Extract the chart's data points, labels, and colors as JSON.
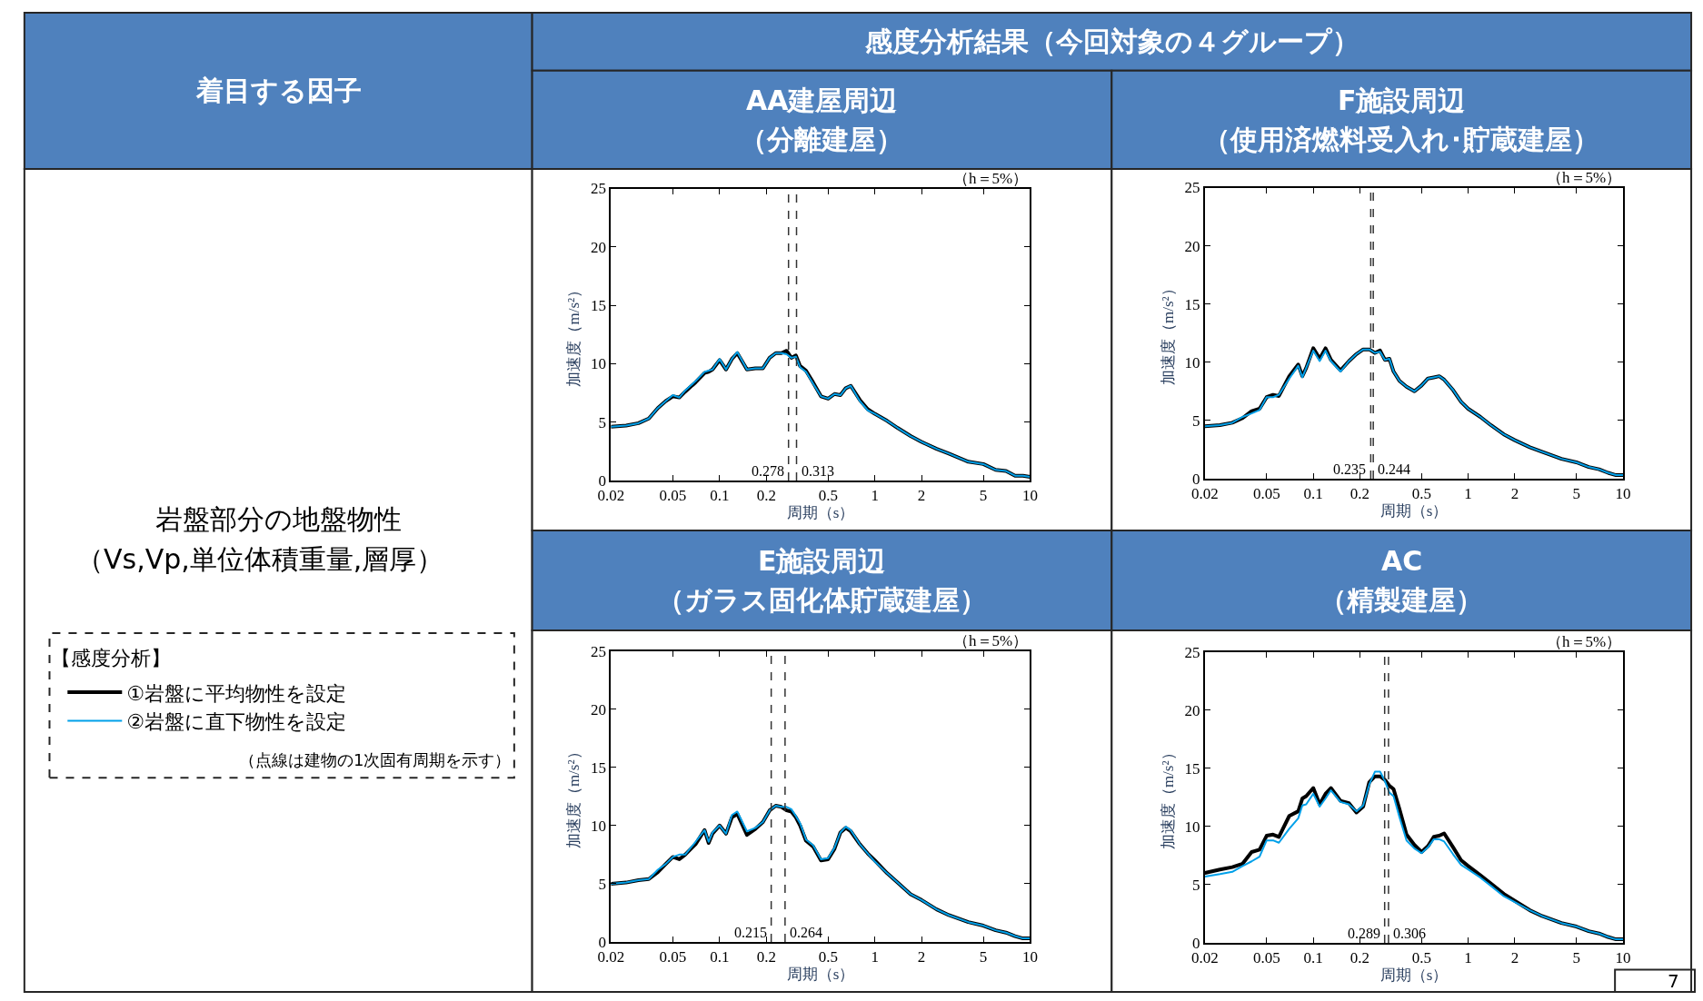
{
  "chart_data": [
    {
      "type": "other",
      "title": "着目する因子",
      "annotations": [
        "感度分析結果（今回対象の４グループ）",
        "岩盤部分の地盤物性",
        "（Vs,Vp,単位体積重量,層厚）",
        "【感度分析】",
        "（点線は建物の1次固有周期を示す）",
        "7"
      ]
    },
    {
      "type": "line",
      "title": "AA建屋周辺",
      "subtitle": "（分離建屋）",
      "xlabel": "周期（s）",
      "ylabel": "加速度（m/s²）",
      "annotations": [
        "（h＝5%）"
      ],
      "log": "x",
      "legend": "left",
      "xlim": [
        0.02,
        10
      ],
      "xticks": [
        0.02,
        0.05,
        0.1,
        0.2,
        0.5,
        1,
        2,
        5,
        10
      ],
      "ylim": [
        0,
        25
      ],
      "yticks": [
        0,
        5,
        10,
        15,
        20,
        25
      ],
      "ref_lines": [
        {
          "axis": "x",
          "value": 0.278,
          "label": "0.278",
          "line_style": "dashed"
        },
        {
          "axis": "x",
          "value": 0.313,
          "label": "0.313",
          "line_style": "dashed"
        }
      ],
      "x": [
        0.02,
        0.025,
        0.03,
        0.035,
        0.04,
        0.045,
        0.05,
        0.055,
        0.06,
        0.07,
        0.08,
        0.085,
        0.09,
        0.1,
        0.11,
        0.12,
        0.13,
        0.15,
        0.17,
        0.19,
        0.21,
        0.23,
        0.25,
        0.27,
        0.29,
        0.31,
        0.33,
        0.36,
        0.4,
        0.45,
        0.5,
        0.55,
        0.6,
        0.65,
        0.7,
        0.8,
        0.9,
        1,
        1.2,
        1.4,
        1.7,
        2,
        2.5,
        3,
        4,
        5,
        6,
        7,
        8,
        9,
        10
      ],
      "series": [
        {
          "name": "①岩盤に平均物性を設定",
          "color": "#000000",
          "values": [
            4.6,
            4.7,
            4.9,
            5.3,
            6.2,
            6.8,
            7.2,
            7.1,
            7.6,
            8.4,
            9.2,
            9.3,
            9.5,
            10.3,
            9.5,
            10.4,
            10.9,
            9.5,
            9.6,
            9.6,
            10.5,
            10.9,
            10.9,
            11.1,
            10.5,
            10.7,
            9.8,
            9.4,
            8.4,
            7.2,
            7.0,
            7.4,
            7.3,
            7.9,
            8.1,
            6.9,
            6.1,
            5.7,
            5.1,
            4.5,
            3.8,
            3.3,
            2.7,
            2.3,
            1.6,
            1.4,
            0.9,
            0.8,
            0.4,
            0.4,
            0.3
          ]
        },
        {
          "name": "②岩盤に直下物性を設定",
          "color": "#00a0e9",
          "values": [
            4.6,
            4.7,
            4.9,
            5.3,
            6.2,
            6.8,
            7.3,
            7.1,
            7.7,
            8.5,
            9.3,
            9.4,
            9.5,
            10.4,
            9.5,
            10.4,
            11.0,
            9.5,
            9.6,
            9.6,
            10.5,
            10.9,
            10.9,
            10.8,
            10.5,
            10.6,
            9.7,
            9.3,
            8.3,
            7.2,
            7.0,
            7.4,
            7.3,
            7.9,
            8.1,
            6.8,
            6.0,
            5.7,
            5.1,
            4.5,
            3.8,
            3.3,
            2.7,
            2.3,
            1.6,
            1.4,
            0.9,
            0.8,
            0.4,
            0.4,
            0.3
          ]
        }
      ]
    },
    {
      "type": "line",
      "title": "F施設周辺",
      "subtitle": "（使用済燃料受入れ･貯蔵建屋）",
      "xlabel": "周期（s）",
      "ylabel": "加速度（m/s²）",
      "annotations": [
        "（h＝5%）"
      ],
      "log": "x",
      "xlim": [
        0.02,
        10
      ],
      "xticks": [
        0.02,
        0.05,
        0.1,
        0.2,
        0.5,
        1,
        2,
        5,
        10
      ],
      "ylim": [
        0,
        25
      ],
      "yticks": [
        0,
        5,
        10,
        15,
        20,
        25
      ],
      "ref_lines": [
        {
          "axis": "x",
          "value": 0.235,
          "label": "0.235",
          "line_style": "dashed"
        },
        {
          "axis": "x",
          "value": 0.244,
          "label": "0.244",
          "line_style": "dashed"
        }
      ],
      "x": [
        0.02,
        0.025,
        0.03,
        0.035,
        0.04,
        0.045,
        0.05,
        0.055,
        0.06,
        0.07,
        0.08,
        0.085,
        0.09,
        0.1,
        0.11,
        0.12,
        0.13,
        0.15,
        0.17,
        0.19,
        0.21,
        0.23,
        0.25,
        0.27,
        0.29,
        0.31,
        0.33,
        0.36,
        0.4,
        0.45,
        0.5,
        0.55,
        0.6,
        0.65,
        0.7,
        0.8,
        0.9,
        1,
        1.2,
        1.4,
        1.7,
        2,
        2.5,
        3,
        4,
        5,
        6,
        7,
        8,
        9,
        10
      ],
      "series": [
        {
          "color": "#000000",
          "values": [
            4.5,
            4.6,
            4.8,
            5.2,
            5.8,
            6.0,
            7.0,
            7.2,
            7.1,
            8.8,
            9.8,
            8.8,
            9.5,
            11.2,
            10.3,
            11.2,
            10.2,
            9.3,
            10.1,
            10.7,
            11.1,
            11.1,
            10.8,
            11.0,
            10.2,
            10.3,
            9.2,
            8.4,
            7.9,
            7.5,
            8.0,
            8.6,
            8.7,
            8.8,
            8.5,
            7.6,
            6.6,
            6.0,
            5.3,
            4.6,
            3.8,
            3.3,
            2.7,
            2.3,
            1.7,
            1.4,
            1.0,
            0.8,
            0.5,
            0.3,
            0.3
          ]
        },
        {
          "color": "#00a0e9",
          "values": [
            4.5,
            4.6,
            4.8,
            5.3,
            5.6,
            5.9,
            7.0,
            7.0,
            7.2,
            8.6,
            9.7,
            8.7,
            9.5,
            11.0,
            10.1,
            11.0,
            10.1,
            9.2,
            10.1,
            10.7,
            11.1,
            11.1,
            10.8,
            10.9,
            10.2,
            10.3,
            9.2,
            8.4,
            7.9,
            7.5,
            8.0,
            8.6,
            8.7,
            8.8,
            8.5,
            7.6,
            6.6,
            6.0,
            5.3,
            4.6,
            3.8,
            3.3,
            2.7,
            2.3,
            1.7,
            1.4,
            1.0,
            0.8,
            0.5,
            0.3,
            0.3
          ]
        }
      ]
    },
    {
      "type": "line",
      "title": "E施設周辺",
      "subtitle": "（ガラス固化体貯蔵建屋）",
      "xlabel": "周期（s）",
      "ylabel": "加速度（m/s²）",
      "annotations": [
        "（h＝5%）"
      ],
      "log": "x",
      "xlim": [
        0.02,
        10
      ],
      "xticks": [
        0.02,
        0.05,
        0.1,
        0.2,
        0.5,
        1,
        2,
        5,
        10
      ],
      "ylim": [
        0,
        25
      ],
      "yticks": [
        0,
        5,
        10,
        15,
        20,
        25
      ],
      "ref_lines": [
        {
          "axis": "x",
          "value": 0.215,
          "label": "0.215",
          "line_style": "dashed"
        },
        {
          "axis": "x",
          "value": 0.264,
          "label": "0.264",
          "line_style": "dashed"
        }
      ],
      "x": [
        0.02,
        0.025,
        0.03,
        0.035,
        0.04,
        0.045,
        0.05,
        0.055,
        0.06,
        0.07,
        0.08,
        0.085,
        0.09,
        0.1,
        0.11,
        0.12,
        0.13,
        0.15,
        0.17,
        0.19,
        0.21,
        0.23,
        0.25,
        0.27,
        0.29,
        0.31,
        0.33,
        0.36,
        0.4,
        0.45,
        0.5,
        0.55,
        0.6,
        0.65,
        0.7,
        0.8,
        0.9,
        1,
        1.2,
        1.4,
        1.7,
        2,
        2.5,
        3,
        4,
        5,
        6,
        7,
        8,
        9,
        10
      ],
      "series": [
        {
          "color": "#000000",
          "values": [
            5.0,
            5.1,
            5.3,
            5.4,
            6.0,
            6.7,
            7.3,
            7.1,
            7.5,
            8.4,
            9.6,
            8.5,
            9.3,
            10.0,
            9.3,
            10.7,
            11.0,
            9.2,
            9.7,
            10.3,
            11.3,
            11.7,
            11.6,
            11.3,
            11.2,
            10.7,
            10.0,
            8.7,
            8.2,
            7.0,
            7.1,
            8.0,
            9.4,
            9.8,
            9.5,
            8.4,
            7.6,
            7.0,
            5.9,
            5.1,
            4.1,
            3.6,
            2.8,
            2.3,
            1.7,
            1.4,
            1.0,
            0.8,
            0.5,
            0.3,
            0.3
          ]
        },
        {
          "color": "#00a0e9",
          "values": [
            5.0,
            5.1,
            5.3,
            5.4,
            6.2,
            6.7,
            7.3,
            7.5,
            7.5,
            8.6,
            9.6,
            8.6,
            9.4,
            10.0,
            9.3,
            10.9,
            11.2,
            9.5,
            9.8,
            10.3,
            11.3,
            11.7,
            11.6,
            11.6,
            11.4,
            10.8,
            10.2,
            8.8,
            8.3,
            7.1,
            7.2,
            8.1,
            9.4,
            9.9,
            9.6,
            8.4,
            7.6,
            6.9,
            5.9,
            5.1,
            4.1,
            3.6,
            2.8,
            2.3,
            1.7,
            1.4,
            1.0,
            0.8,
            0.5,
            0.3,
            0.3
          ]
        }
      ]
    },
    {
      "type": "line",
      "title": "AC",
      "subtitle": "（精製建屋）",
      "xlabel": "周期（s）",
      "ylabel": "加速度（m/s²）",
      "annotations": [
        "（h＝5%）"
      ],
      "log": "x",
      "xlim": [
        0.02,
        10
      ],
      "xticks": [
        0.02,
        0.05,
        0.1,
        0.2,
        0.5,
        1,
        2,
        5,
        10
      ],
      "ylim": [
        0,
        25
      ],
      "yticks": [
        0,
        5,
        10,
        15,
        20,
        25
      ],
      "ref_lines": [
        {
          "axis": "x",
          "value": 0.289,
          "label": "0.289",
          "line_style": "dashed"
        },
        {
          "axis": "x",
          "value": 0.306,
          "label": "0.306",
          "line_style": "dashed"
        }
      ],
      "x": [
        0.02,
        0.025,
        0.03,
        0.035,
        0.04,
        0.045,
        0.05,
        0.055,
        0.06,
        0.07,
        0.08,
        0.085,
        0.09,
        0.1,
        0.11,
        0.12,
        0.13,
        0.15,
        0.17,
        0.19,
        0.21,
        0.23,
        0.25,
        0.27,
        0.29,
        0.31,
        0.33,
        0.36,
        0.4,
        0.45,
        0.5,
        0.55,
        0.6,
        0.65,
        0.7,
        0.8,
        0.9,
        1,
        1.2,
        1.4,
        1.7,
        2,
        2.5,
        3,
        4,
        5,
        6,
        7,
        8,
        9,
        10
      ],
      "series": [
        {
          "color": "#000000",
          "values": [
            6.0,
            6.3,
            6.5,
            6.8,
            7.8,
            8.0,
            9.2,
            9.3,
            9.1,
            10.9,
            11.3,
            12.4,
            12.6,
            13.3,
            11.9,
            12.8,
            13.3,
            12.2,
            12.0,
            11.2,
            11.7,
            13.8,
            14.3,
            14.3,
            14.0,
            13.5,
            13.2,
            11.5,
            9.3,
            8.4,
            7.8,
            8.3,
            9.1,
            9.2,
            9.4,
            8.2,
            7.1,
            6.6,
            5.8,
            5.1,
            4.2,
            3.6,
            2.8,
            2.3,
            1.7,
            1.4,
            1.0,
            0.8,
            0.5,
            0.3,
            0.3
          ]
        },
        {
          "color": "#00a0e9",
          "values": [
            5.7,
            5.9,
            6.1,
            6.6,
            7.0,
            7.4,
            8.8,
            8.8,
            8.6,
            9.8,
            10.7,
            11.8,
            11.9,
            12.8,
            11.7,
            12.4,
            13.1,
            12.1,
            11.9,
            11.3,
            11.8,
            13.6,
            14.7,
            14.7,
            13.9,
            12.9,
            12.6,
            10.8,
            8.8,
            8.1,
            7.7,
            8.2,
            8.9,
            8.9,
            8.7,
            7.6,
            6.7,
            6.3,
            5.6,
            4.9,
            4.0,
            3.5,
            2.8,
            2.3,
            1.7,
            1.4,
            1.0,
            0.8,
            0.5,
            0.3,
            0.3
          ]
        }
      ]
    }
  ]
}
